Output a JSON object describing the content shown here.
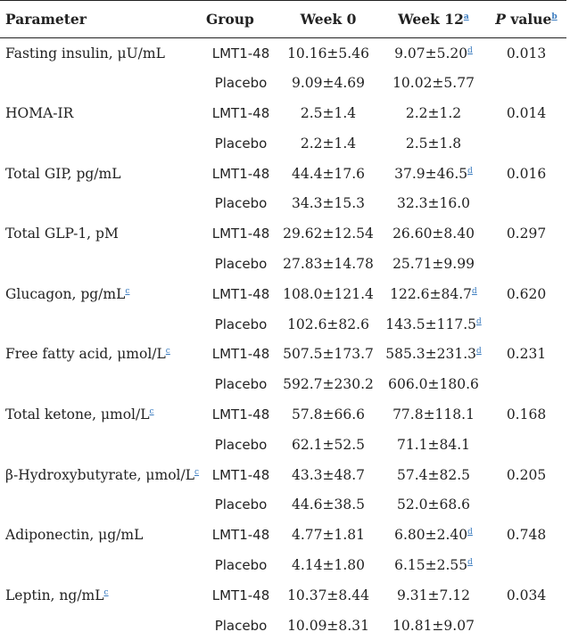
{
  "header": {
    "parameter": "Parameter",
    "group": "Group",
    "week0": "Week 0",
    "week12": "Week 12",
    "week12_note": "a",
    "p_italic": "P",
    "p_rest": " value",
    "p_note": "b"
  },
  "rows": [
    {
      "parameter": "Fasting insulin, μU/mL",
      "param_note": "",
      "lmt": {
        "group": "LMT1-48",
        "week0": "10.16±5.46",
        "week12": "9.07±5.20",
        "week12_note": "d",
        "p": "0.013"
      },
      "placebo": {
        "group": "Placebo",
        "week0": "9.09±4.69",
        "week12": "10.02±5.77",
        "week12_note": ""
      }
    },
    {
      "parameter": "HOMA-IR",
      "param_note": "",
      "lmt": {
        "group": "LMT1-48",
        "week0": "2.5±1.4",
        "week12": "2.2±1.2",
        "week12_note": "",
        "p": "0.014"
      },
      "placebo": {
        "group": "Placebo",
        "week0": "2.2±1.4",
        "week12": "2.5±1.8",
        "week12_note": ""
      }
    },
    {
      "parameter": "Total GIP, pg/mL",
      "param_note": "",
      "lmt": {
        "group": "LMT1-48",
        "week0": "44.4±17.6",
        "week12": "37.9±46.5",
        "week12_note": "d",
        "p": "0.016"
      },
      "placebo": {
        "group": "Placebo",
        "week0": "34.3±15.3",
        "week12": "32.3±16.0",
        "week12_note": ""
      }
    },
    {
      "parameter": "Total GLP-1, pM",
      "param_note": "",
      "lmt": {
        "group": "LMT1-48",
        "week0": "29.62±12.54",
        "week12": "26.60±8.40",
        "week12_note": "",
        "p": "0.297"
      },
      "placebo": {
        "group": "Placebo",
        "week0": "27.83±14.78",
        "week12": "25.71±9.99",
        "week12_note": ""
      }
    },
    {
      "parameter": "Glucagon, pg/mL",
      "param_note": "c",
      "lmt": {
        "group": "LMT1-48",
        "week0": "108.0±121.4",
        "week12": "122.6±84.7",
        "week12_note": "d",
        "p": "0.620"
      },
      "placebo": {
        "group": "Placebo",
        "week0": "102.6±82.6",
        "week12": "143.5±117.5",
        "week12_note": "d"
      }
    },
    {
      "parameter": "Free fatty acid, μmol/L",
      "param_note": "c",
      "lmt": {
        "group": "LMT1-48",
        "week0": "507.5±173.7",
        "week12": "585.3±231.3",
        "week12_note": "d",
        "p": "0.231"
      },
      "placebo": {
        "group": "Placebo",
        "week0": "592.7±230.2",
        "week12": "606.0±180.6",
        "week12_note": ""
      }
    },
    {
      "parameter": "Total ketone, μmol/L",
      "param_note": "c",
      "lmt": {
        "group": "LMT1-48",
        "week0": "57.8±66.6",
        "week12": "77.8±118.1",
        "week12_note": "",
        "p": "0.168"
      },
      "placebo": {
        "group": "Placebo",
        "week0": "62.1±52.5",
        "week12": "71.1±84.1",
        "week12_note": ""
      }
    },
    {
      "parameter": "β-Hydroxybutyrate, μmol/L",
      "param_note": "c",
      "lmt": {
        "group": "LMT1-48",
        "week0": "43.3±48.7",
        "week12": "57.4±82.5",
        "week12_note": "",
        "p": "0.205"
      },
      "placebo": {
        "group": "Placebo",
        "week0": "44.6±38.5",
        "week12": "52.0±68.6",
        "week12_note": ""
      }
    },
    {
      "parameter": "Adiponectin, μg/mL",
      "param_note": "",
      "lmt": {
        "group": "LMT1-48",
        "week0": "4.77±1.81",
        "week12": "6.80±2.40",
        "week12_note": "d",
        "p": "0.748"
      },
      "placebo": {
        "group": "Placebo",
        "week0": "4.14±1.80",
        "week12": "6.15±2.55",
        "week12_note": "d"
      }
    },
    {
      "parameter": "Leptin, ng/mL",
      "param_note": "c",
      "lmt": {
        "group": "LMT1-48",
        "week0": "10.37±8.44",
        "week12": "9.31±7.12",
        "week12_note": "",
        "p": "0.034"
      },
      "placebo": {
        "group": "Placebo",
        "week0": "10.09±8.31",
        "week12": "10.81±9.07",
        "week12_note": ""
      }
    }
  ]
}
